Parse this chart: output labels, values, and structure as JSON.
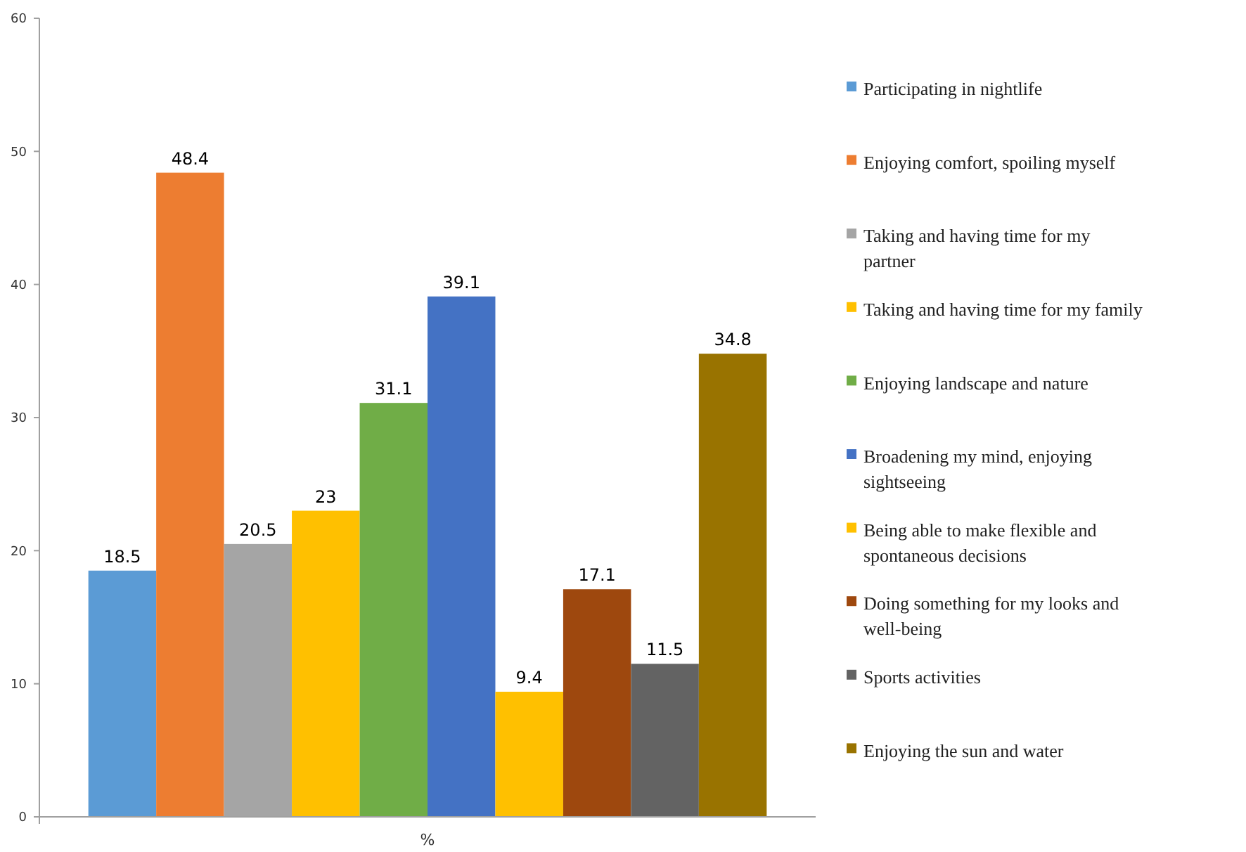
{
  "chart_data": {
    "type": "bar",
    "categories": [
      "%"
    ],
    "ylim": [
      0,
      60
    ],
    "yticks": [
      0,
      10,
      20,
      30,
      40,
      50,
      60
    ],
    "data_labels": true,
    "legend": "right",
    "grid": false,
    "series": [
      {
        "name": "Participating in nightlife",
        "color": "#5b9bd5",
        "values": [
          18.5
        ]
      },
      {
        "name": "Enjoying comfort, spoiling myself",
        "color": "#ed7d31",
        "values": [
          48.4
        ]
      },
      {
        "name": "Taking and having time for my partner",
        "color": "#a5a5a5",
        "values": [
          20.5
        ]
      },
      {
        "name": "Taking and having time for my family",
        "color": "#ffc000",
        "values": [
          23
        ]
      },
      {
        "name": "Enjoying landscape and nature",
        "color": "#70ad47",
        "values": [
          31.1
        ]
      },
      {
        "name": "Broadening my mind, enjoying sightseeing",
        "color": "#4472c4",
        "values": [
          39.1
        ]
      },
      {
        "name": "Being able to make flexible and spontaneous decisions",
        "color": "#ffc000",
        "values": [
          9.4
        ]
      },
      {
        "name": "Doing something for my looks and well-being",
        "color": "#9e480e",
        "values": [
          17.1
        ]
      },
      {
        "name": "Sports activities",
        "color": "#636363",
        "values": [
          11.5
        ]
      },
      {
        "name": "Enjoying the sun and water",
        "color": "#997300",
        "values": [
          34.8
        ]
      }
    ]
  }
}
